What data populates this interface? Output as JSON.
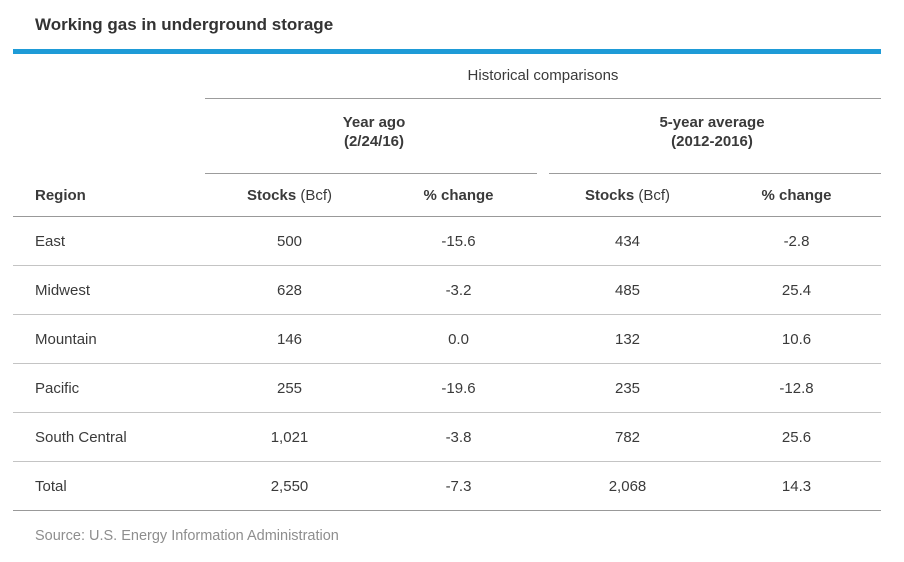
{
  "chart_data": {
    "type": "table",
    "title": "Working gas in underground storage",
    "group_header": "Historical comparisons",
    "column_groups": [
      {
        "label": "Year ago",
        "sublabel": "(2/24/16)"
      },
      {
        "label": "5-year average",
        "sublabel": "(2012-2016)"
      }
    ],
    "columns": [
      {
        "label": "Region"
      },
      {
        "label": "Stocks",
        "unit": "(Bcf)"
      },
      {
        "label": "% change"
      },
      {
        "label": "Stocks",
        "unit": "(Bcf)"
      },
      {
        "label": "% change"
      }
    ],
    "rows": [
      [
        "East",
        "500",
        "-15.6",
        "434",
        "-2.8"
      ],
      [
        "Midwest",
        "628",
        "-3.2",
        "485",
        "25.4"
      ],
      [
        "Mountain",
        "146",
        "0.0",
        "132",
        "10.6"
      ],
      [
        "Pacific",
        "255",
        "-19.6",
        "235",
        "-12.8"
      ],
      [
        "South Central",
        "1,021",
        "-3.8",
        "782",
        "25.6"
      ],
      [
        "Total",
        "2,550",
        "-7.3",
        "2,068",
        "14.3"
      ]
    ],
    "rows_numeric": {
      "year_ago_stocks_bcf": [
        500,
        628,
        146,
        255,
        1021,
        2550
      ],
      "year_ago_pct_change": [
        -15.6,
        -3.2,
        0.0,
        -19.6,
        -3.8,
        -7.3
      ],
      "five_yr_avg_stocks_bcf": [
        434,
        485,
        132,
        235,
        782,
        2068
      ],
      "five_yr_avg_pct_change": [
        -2.8,
        25.4,
        10.6,
        -12.8,
        25.6,
        14.3
      ]
    },
    "source": "Source: U.S. Energy Information Administration"
  },
  "colors": {
    "accent_blue": "#1e9bd7",
    "text_dark": "#3a3a3a",
    "header_line_gray": "#999999",
    "row_line_gray": "#c4c4c4",
    "source_text_gray": "#8e8e8e"
  }
}
